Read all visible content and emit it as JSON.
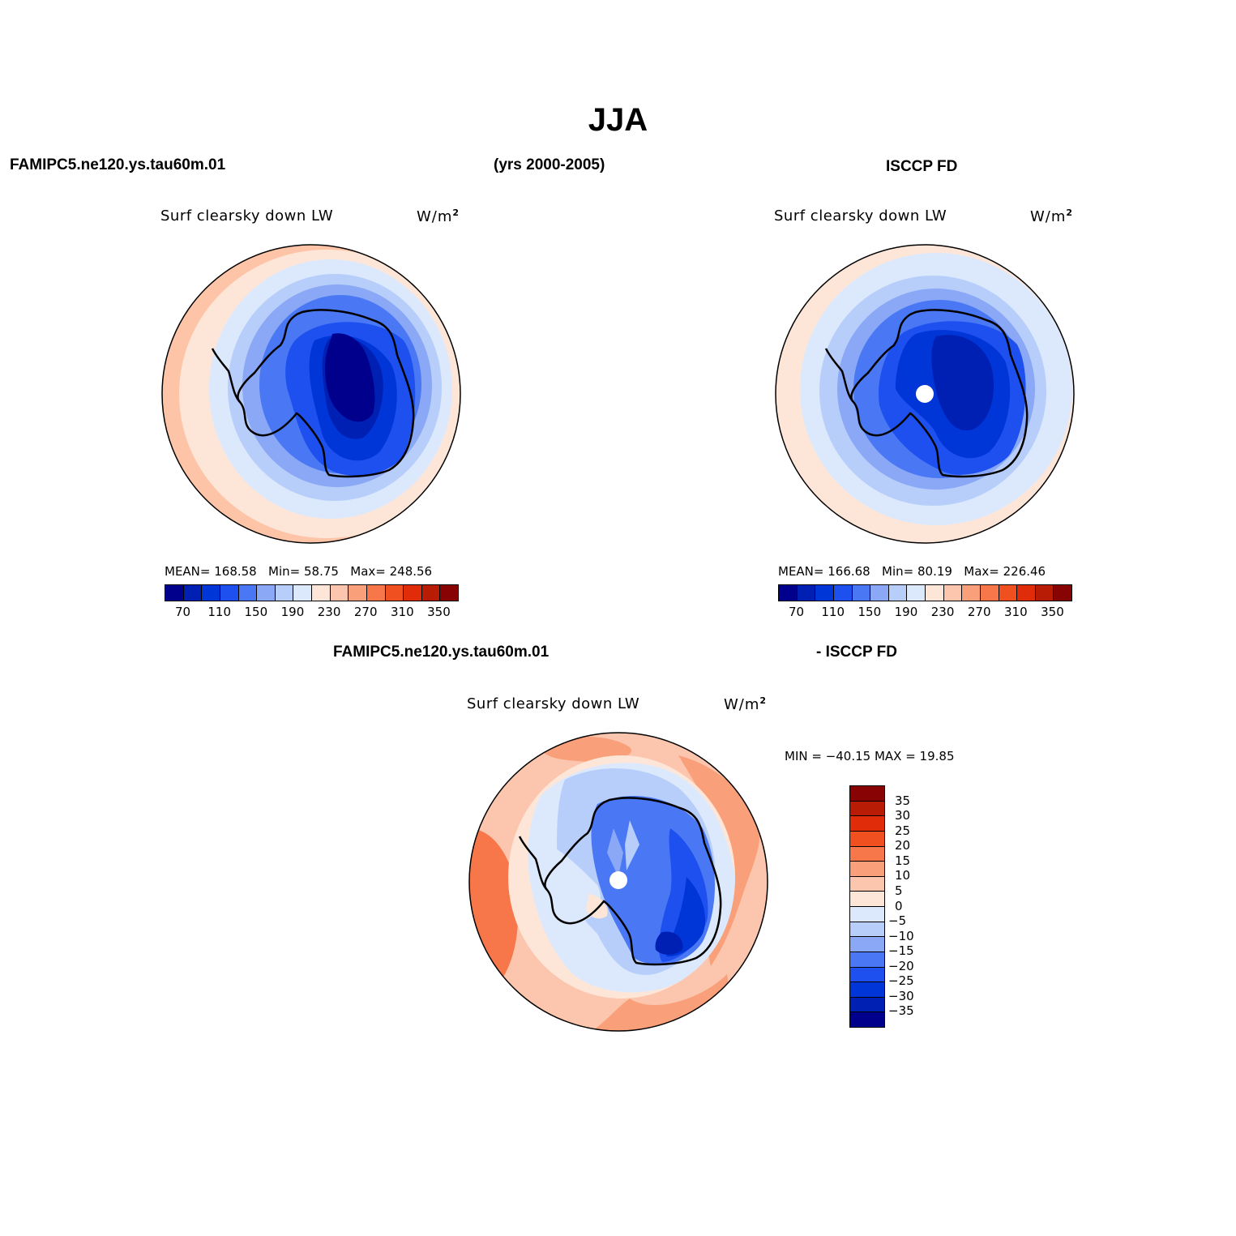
{
  "title": "JJA",
  "header": {
    "left": "FAMIPC5.ne120.ys.tau60m.01",
    "center": "(yrs 2000-2005)",
    "right": "ISCCP FD"
  },
  "diff_header": {
    "left": "FAMIPC5.ne120.ys.tau60m.01",
    "right": "- ISCCP FD"
  },
  "panels": [
    {
      "variable": "Surf  clearsky  down  LW",
      "units": "W/m",
      "units_sup": "2",
      "mean_label": "MEAN=  168.58",
      "min_label": "Min=   58.75",
      "max_label": "Max=  248.56"
    },
    {
      "variable": "Surf  clearsky  down  LW",
      "units": "W/m",
      "units_sup": "2",
      "mean_label": "MEAN=  166.68",
      "min_label": "Min=   80.19",
      "max_label": "Max=  226.46"
    },
    {
      "variable": "Surf  clearsky  down  LW",
      "units": "W/m",
      "units_sup": "2",
      "minmax_label": "MIN = −40.15  MAX =   19.85"
    }
  ],
  "colorbar_main": {
    "colors": [
      "#00008c",
      "#0020b4",
      "#0035d8",
      "#1e50f0",
      "#4a78f4",
      "#8aa8f6",
      "#b8cefa",
      "#dce9fd",
      "#fde6d8",
      "#fcc6ae",
      "#f9a07a",
      "#f7774a",
      "#f05020",
      "#e02c08",
      "#b81c04",
      "#880404"
    ],
    "labels": [
      "70",
      "110",
      "150",
      "190",
      "230",
      "270",
      "310",
      "350"
    ]
  },
  "colorbar_diff": {
    "colors": [
      "#880404",
      "#b81c04",
      "#e02c08",
      "#f05020",
      "#f7774a",
      "#f9a07a",
      "#fcc6ae",
      "#fde6d8",
      "#dce9fd",
      "#b8cefa",
      "#8aa8f6",
      "#4a78f4",
      "#1e50f0",
      "#0035d8",
      "#0020b4",
      "#00008c"
    ],
    "labels": [
      "35",
      "30",
      "25",
      "20",
      "15",
      "10",
      "5",
      "0",
      "−5",
      "−10",
      "−15",
      "−20",
      "−25",
      "−30",
      "−35"
    ]
  }
}
